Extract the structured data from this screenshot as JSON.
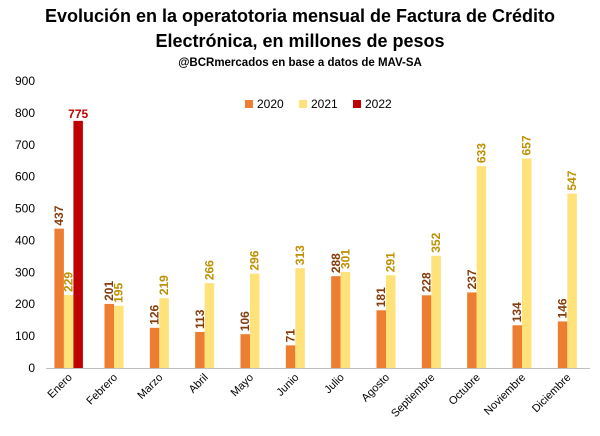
{
  "chart_data": {
    "type": "bar",
    "title": "Evolución en la operatotoria mensual de Factura de Crédito Electrónica, en millones de pesos",
    "title_lines": [
      "Evolución en la operatotoria mensual de Factura de Crédito",
      "Electrónica, en millones de pesos"
    ],
    "subtitle": "@BCRmercados en base a datos de MAV-SA",
    "xlabel": "",
    "ylabel": "",
    "ylim": [
      0,
      900
    ],
    "yticks": [
      "0",
      "100",
      "200",
      "300",
      "400",
      "500",
      "600",
      "700",
      "800",
      "900"
    ],
    "grid": false,
    "legend_position": "top-center",
    "categories": [
      "Enero",
      "Febrero",
      "Marzo",
      "Abril",
      "Mayo",
      "Junio",
      "Julio",
      "Agosto",
      "Septiembre",
      "Octubre",
      "Noviembre",
      "Diciembre"
    ],
    "series": [
      {
        "name": "2020",
        "color": "#ED7D31",
        "label_color": "#843C0C",
        "values": [
          437,
          201,
          126,
          113,
          106,
          71,
          288,
          181,
          228,
          237,
          134,
          146
        ]
      },
      {
        "name": "2021",
        "color": "#FFE27A",
        "label_color": "#BF9000",
        "values": [
          229,
          195,
          219,
          266,
          296,
          313,
          301,
          291,
          352,
          633,
          657,
          547
        ]
      },
      {
        "name": "2022",
        "color": "#C00000",
        "label_color": "#C00000",
        "values": [
          775,
          null,
          null,
          null,
          null,
          null,
          null,
          null,
          null,
          null,
          null,
          null
        ]
      }
    ]
  }
}
